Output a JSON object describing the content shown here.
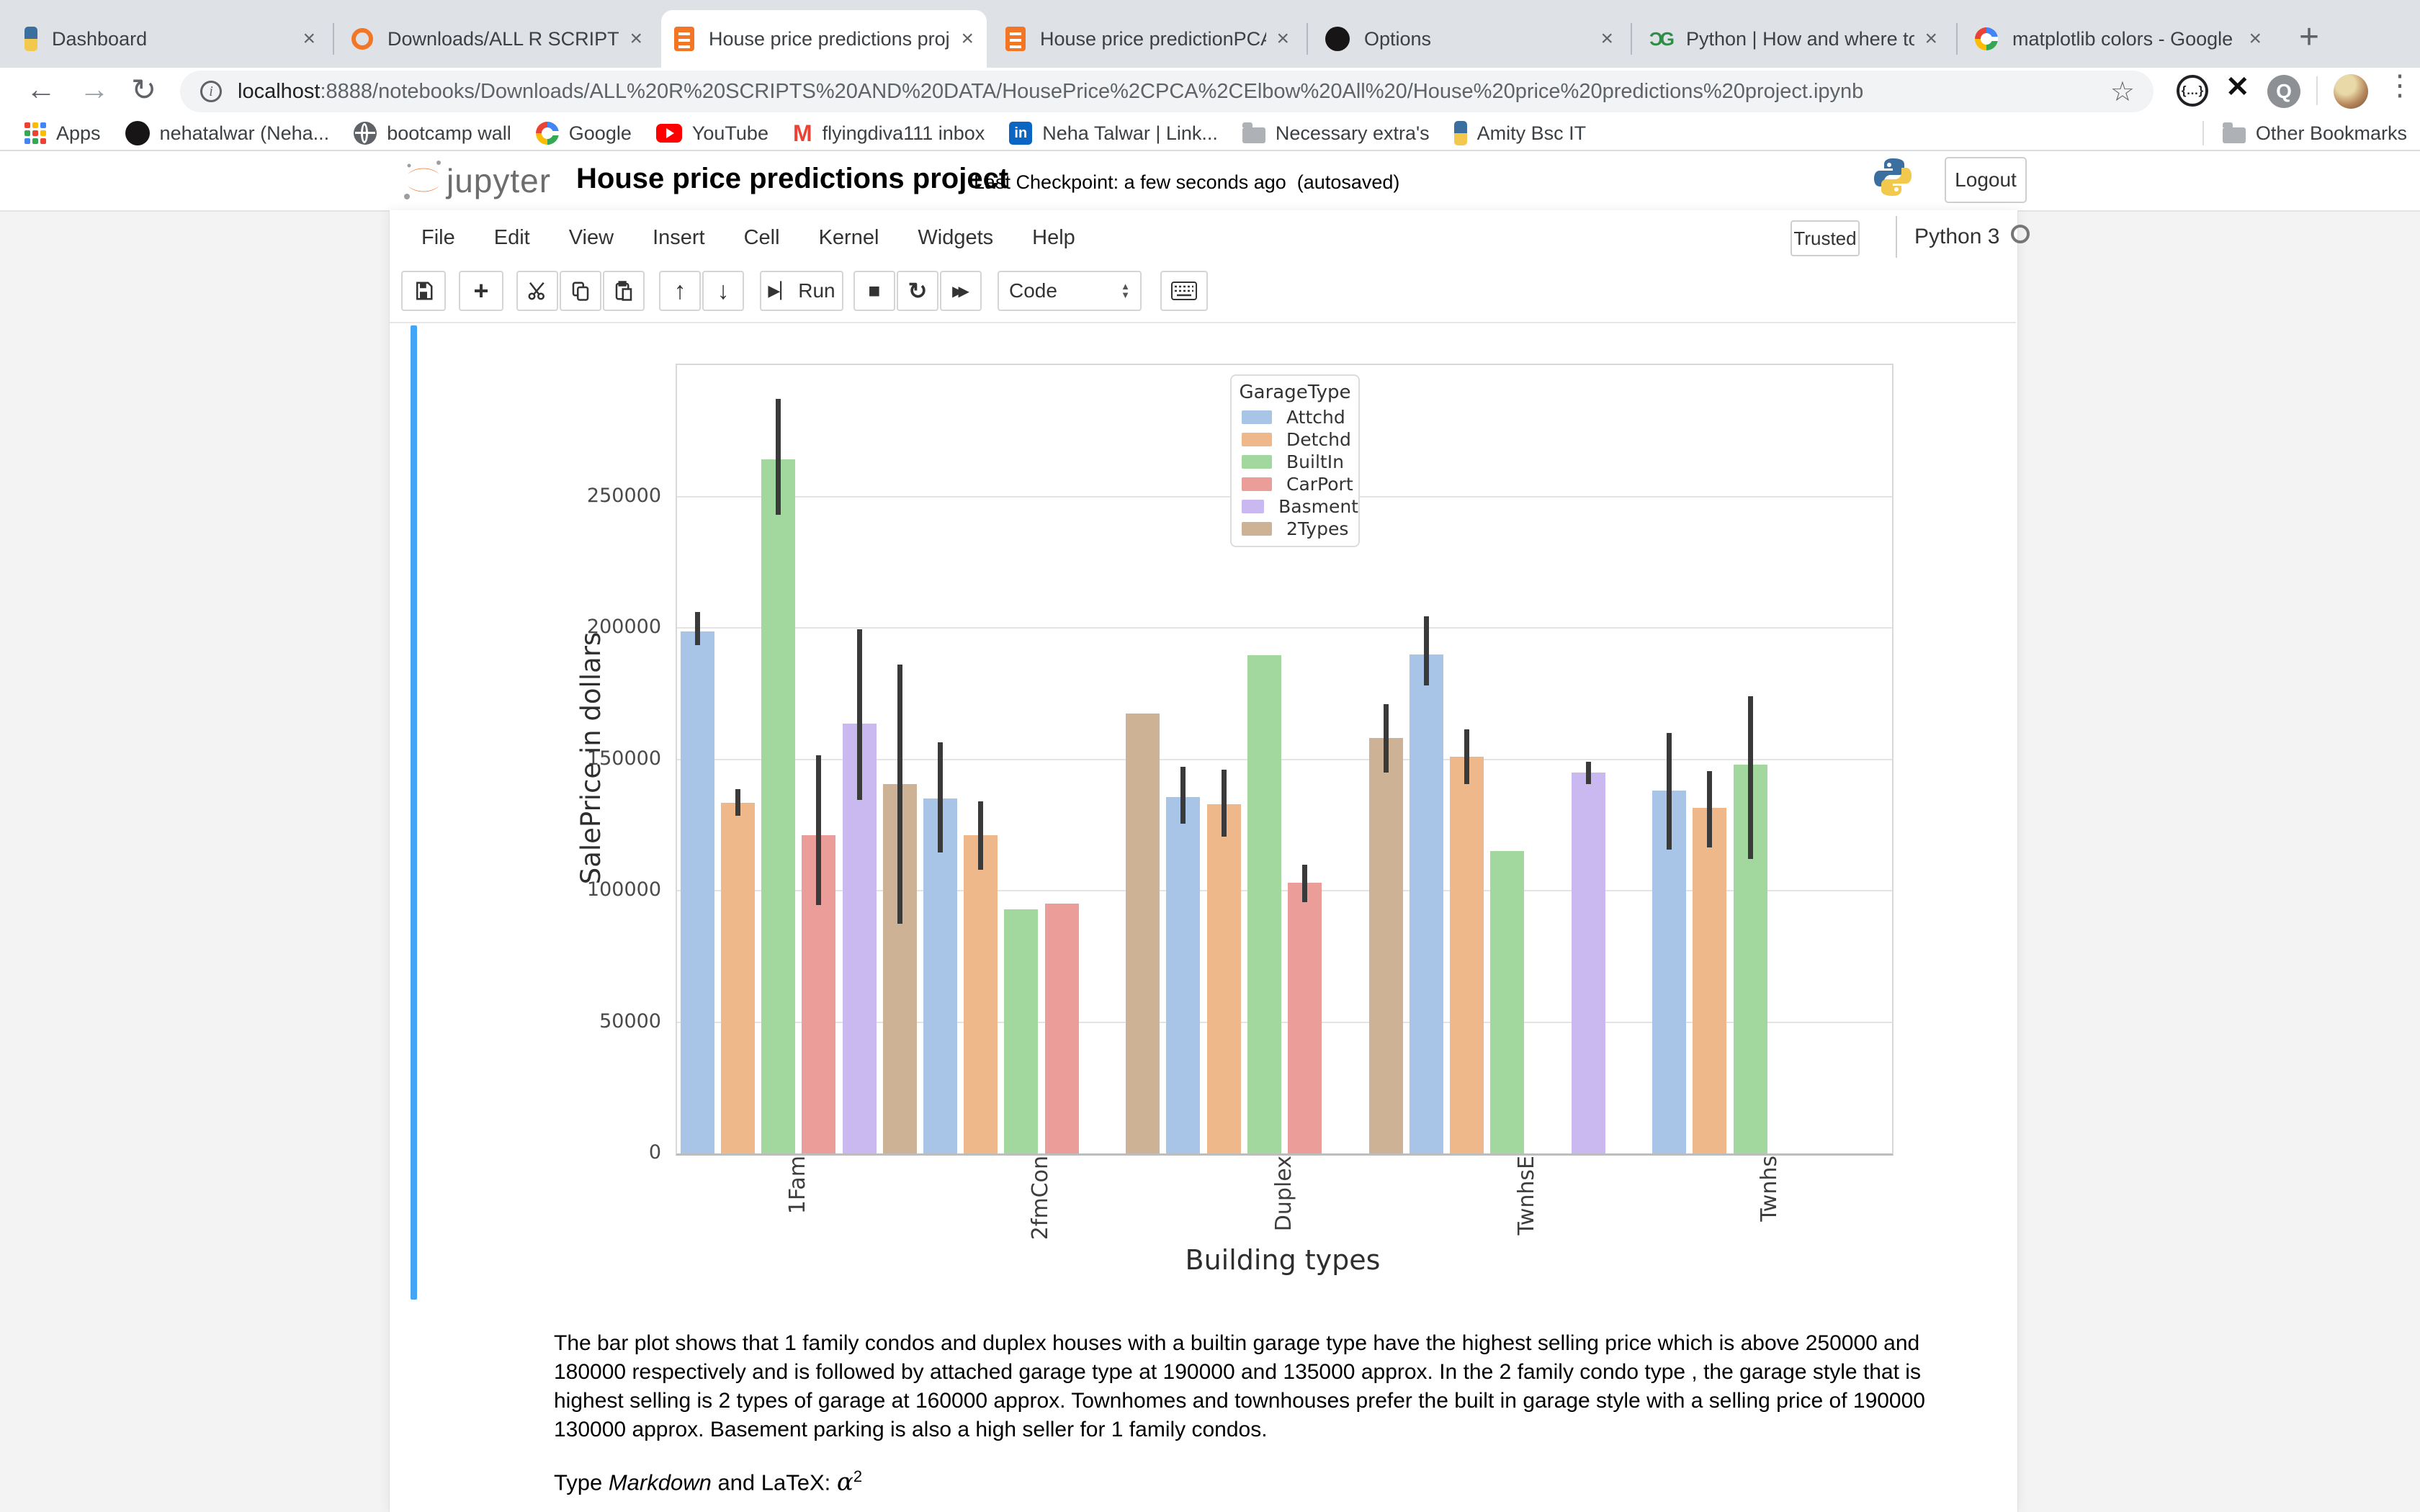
{
  "browser": {
    "tabs": [
      {
        "title": "Dashboard",
        "icon": "python",
        "active": false
      },
      {
        "title": "Downloads/ALL R SCRIPTS A",
        "icon": "jupyter-ring",
        "active": false
      },
      {
        "title": "House price predictions proj",
        "icon": "notebook",
        "active": true
      },
      {
        "title": "House price predictionPCA n",
        "icon": "notebook",
        "active": false
      },
      {
        "title": "Options",
        "icon": "github",
        "active": false
      },
      {
        "title": "Python | How and where to a",
        "icon": "gfg",
        "active": false
      },
      {
        "title": "matplotlib colors - Google S",
        "icon": "google",
        "active": false
      }
    ],
    "new_tab_label": "+",
    "nav": {
      "back": "←",
      "forward": "→",
      "reload": "↻"
    },
    "url": {
      "host": "localhost",
      "rest": ":8888/notebooks/Downloads/ALL%20R%20SCRIPTS%20AND%20DATA/HousePrice%2CPCA%2CElbow%20All%20/House%20price%20predictions%20project.ipynb"
    },
    "bookmarks": [
      {
        "label": "Apps",
        "icon": "apps"
      },
      {
        "label": "nehatalwar (Neha...",
        "icon": "github"
      },
      {
        "label": "bootcamp wall",
        "icon": "globe"
      },
      {
        "label": "Google",
        "icon": "google"
      },
      {
        "label": "YouTube",
        "icon": "youtube"
      },
      {
        "label": "flyingdiva111 inbox",
        "icon": "gmail"
      },
      {
        "label": "Neha Talwar | Link...",
        "icon": "linkedin"
      },
      {
        "label": "Necessary extra's",
        "icon": "folder"
      },
      {
        "label": "Amity Bsc IT",
        "icon": "python"
      }
    ],
    "other_bookmarks": {
      "label": "Other Bookmarks",
      "icon": "folder"
    }
  },
  "jupyter": {
    "wordmark": "jupyter",
    "title": "House price predictions project",
    "checkpoint": "Last Checkpoint: a few seconds ago",
    "autosave": "(autosaved)",
    "logout": "Logout",
    "menus": [
      "File",
      "Edit",
      "View",
      "Insert",
      "Cell",
      "Kernel",
      "Widgets",
      "Help"
    ],
    "trusted": "Trusted",
    "kernel_name": "Python 3",
    "toolbar": {
      "run_label": "Run",
      "cell_type": "Code"
    }
  },
  "chart_data": {
    "type": "bar",
    "xlabel": "Building types",
    "ylabel": "SalePrice in dollars",
    "legend_title": "GarageType",
    "legend_position": "upper right inside",
    "grid": "horizontal",
    "ylim": [
      0,
      300000
    ],
    "yticks": [
      0,
      50000,
      100000,
      150000,
      200000,
      250000
    ],
    "categories": [
      "1Fam",
      "2fmCon",
      "Duplex",
      "TwnhsE",
      "Twnhs"
    ],
    "series": [
      {
        "name": "Attchd",
        "color": "#a8c5e7",
        "values": [
          198500,
          135000,
          135500,
          190000,
          138000
        ],
        "err_low": [
          193500,
          114500,
          125500,
          178000,
          115500
        ],
        "err_high": [
          206000,
          156500,
          147000,
          204500,
          160000
        ]
      },
      {
        "name": "Detchd",
        "color": "#eeb88b",
        "values": [
          133500,
          121000,
          133000,
          151000,
          131500
        ],
        "err_low": [
          128500,
          108000,
          120500,
          140500,
          116500
        ],
        "err_high": [
          138500,
          134000,
          146000,
          161500,
          145500
        ]
      },
      {
        "name": "BuiltIn",
        "color": "#a2d89e",
        "values": [
          264000,
          93000,
          189500,
          115000,
          148000
        ],
        "err_low": [
          243000,
          null,
          null,
          null,
          112000
        ],
        "err_high": [
          287000,
          null,
          null,
          null,
          174000
        ]
      },
      {
        "name": "CarPort",
        "color": "#ea9d99",
        "values": [
          121000,
          95000,
          103000,
          null,
          null
        ],
        "err_low": [
          94500,
          null,
          95500,
          null,
          null
        ],
        "err_high": [
          151500,
          null,
          110000,
          null,
          null
        ]
      },
      {
        "name": "Basment",
        "color": "#c9b9f0",
        "values": [
          163500,
          null,
          null,
          145000,
          null
        ],
        "err_low": [
          134500,
          null,
          null,
          140500,
          null
        ],
        "err_high": [
          199500,
          null,
          null,
          149000,
          null
        ]
      },
      {
        "name": "2Types",
        "color": "#cdb296",
        "values": [
          140500,
          167500,
          158000,
          null,
          null
        ],
        "err_low": [
          87500,
          null,
          145000,
          null,
          null
        ],
        "err_high": [
          186000,
          null,
          171000,
          null,
          null
        ]
      }
    ],
    "error_bar_color": "#3a3a3a"
  },
  "notebook": {
    "paragraph": "The bar plot shows that 1 family condos and duplex houses with a builtin garage type have the highest selling price which is above 250000 and 180000 respectively and is followed by attached garage type at 190000 and 135000 approx. In the 2 family condo type , the garage style that is highest selling is 2 types of garage at 160000 approx. Townhomes and townhouses prefer the built in garage style with a selling price of 190000 130000 approx. Basement parking is also a high seller for 1 family condos.",
    "prompt": {
      "pre": "Type ",
      "italic": "Markdown",
      "mid": " and LaTeX: ",
      "alpha": "α",
      "sup": "2"
    }
  }
}
